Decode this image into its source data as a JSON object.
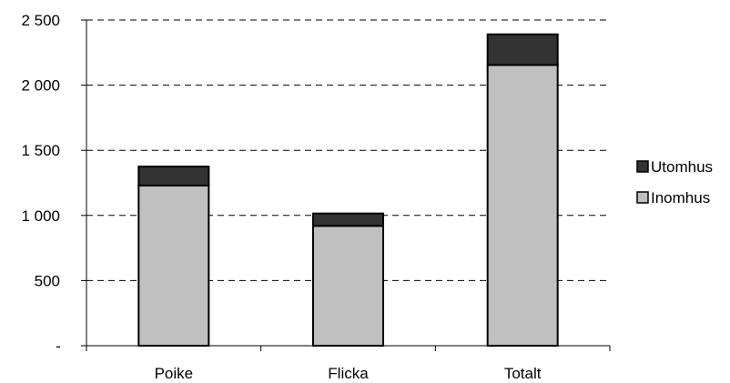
{
  "chart_data": {
    "type": "bar",
    "stacked": true,
    "categories": [
      "Poike",
      "Flicka",
      "Totalt"
    ],
    "series": [
      {
        "name": "Inomhus",
        "values": [
          1230,
          920,
          2155
        ],
        "color": "#c0c0c0"
      },
      {
        "name": "Utomhus",
        "values": [
          145,
          95,
          235
        ],
        "color": "#333333"
      }
    ],
    "ylim": [
      0,
      2500
    ],
    "yticks": [
      {
        "value": 0,
        "label": "-"
      },
      {
        "value": 500,
        "label": "500"
      },
      {
        "value": 1000,
        "label": "1 000"
      },
      {
        "value": 1500,
        "label": "1 500"
      },
      {
        "value": 2000,
        "label": "2 000"
      },
      {
        "value": 2500,
        "label": "2 500"
      }
    ],
    "grid": true,
    "legend": {
      "position": "right",
      "entries": [
        "Utomhus",
        "Inomhus"
      ]
    },
    "title": "",
    "xlabel": "",
    "ylabel": ""
  }
}
